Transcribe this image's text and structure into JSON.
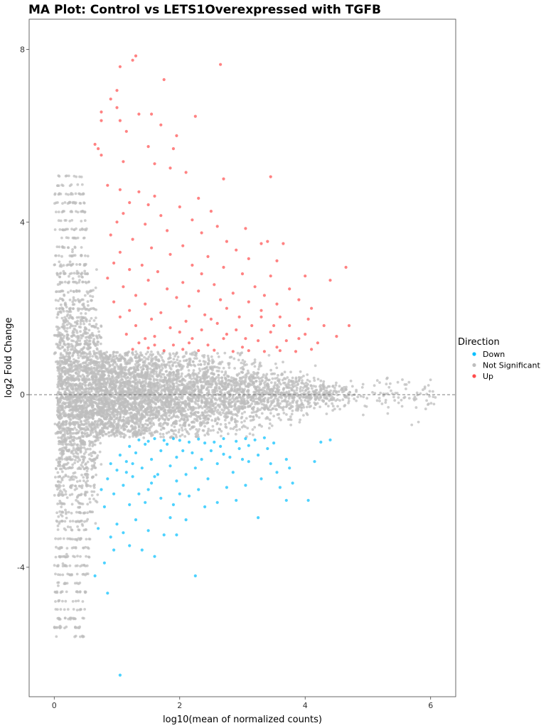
{
  "chart_data": {
    "type": "scatter",
    "title": "MA Plot: Control vs LETS1Overexpressed with TGFB",
    "xlabel": "log10(mean of normalized counts)",
    "ylabel": "log2 Fold Change",
    "xlim": [
      -0.4,
      6.4
    ],
    "ylim": [
      -7.0,
      8.7
    ],
    "x_ticks": [
      0,
      2,
      4,
      6
    ],
    "y_ticks": [
      -4,
      0,
      4,
      8
    ],
    "x_tick_labels": [
      "0",
      "2",
      "4",
      "6"
    ],
    "y_tick_labels": [
      "-4",
      "0",
      "4",
      "8"
    ],
    "reference_line": {
      "y": 0,
      "style": "dashed"
    },
    "legend": {
      "title": "Direction",
      "placement": "right"
    },
    "series": [
      {
        "name": "Down",
        "color": "#00bfff",
        "points": [
          [
            1.05,
            -6.5
          ],
          [
            0.65,
            -4.2
          ],
          [
            0.85,
            -4.6
          ],
          [
            0.8,
            -3.9
          ],
          [
            2.25,
            -4.2
          ],
          [
            0.95,
            -3.6
          ],
          [
            1.6,
            -3.75
          ],
          [
            1.4,
            -3.6
          ],
          [
            1.2,
            -3.5
          ],
          [
            0.9,
            -3.3
          ],
          [
            1.1,
            -3.2
          ],
          [
            1.75,
            -3.25
          ],
          [
            1.95,
            -3.25
          ],
          [
            1.5,
            -3.15
          ],
          [
            0.7,
            -3.1
          ],
          [
            1.0,
            -3.0
          ],
          [
            1.3,
            -2.9
          ],
          [
            1.85,
            -2.85
          ],
          [
            2.1,
            -2.9
          ],
          [
            3.25,
            -2.85
          ],
          [
            2.9,
            -2.45
          ],
          [
            3.7,
            -2.45
          ],
          [
            4.05,
            -2.45
          ],
          [
            0.8,
            -2.6
          ],
          [
            1.2,
            -2.55
          ],
          [
            1.45,
            -2.5
          ],
          [
            1.7,
            -2.4
          ],
          [
            1.9,
            -2.55
          ],
          [
            2.15,
            -2.35
          ],
          [
            2.4,
            -2.6
          ],
          [
            2.6,
            -2.5
          ],
          [
            0.95,
            -2.3
          ],
          [
            1.35,
            -2.3
          ],
          [
            3.6,
            -2.15
          ],
          [
            3.8,
            -2.05
          ],
          [
            2.3,
            -2.2
          ],
          [
            2.75,
            -2.15
          ],
          [
            3.05,
            -2.1
          ],
          [
            0.75,
            -2.2
          ],
          [
            1.1,
            -2.1
          ],
          [
            1.55,
            -2.05
          ],
          [
            1.95,
            -2.0
          ],
          [
            2.45,
            -1.95
          ],
          [
            3.3,
            -1.95
          ],
          [
            0.85,
            -1.95
          ],
          [
            1.25,
            -1.9
          ],
          [
            1.65,
            -1.85
          ],
          [
            2.1,
            -1.85
          ],
          [
            2.85,
            -1.8
          ],
          [
            3.55,
            -1.8
          ],
          [
            3.75,
            -1.7
          ],
          [
            1.0,
            -1.75
          ],
          [
            1.4,
            -1.7
          ],
          [
            1.85,
            -1.65
          ],
          [
            2.25,
            -1.7
          ],
          [
            2.6,
            -1.6
          ],
          [
            3.1,
            -1.55
          ],
          [
            4.15,
            -1.55
          ],
          [
            0.9,
            -1.6
          ],
          [
            1.15,
            -1.55
          ],
          [
            1.55,
            -1.5
          ],
          [
            1.95,
            -1.45
          ],
          [
            2.35,
            -1.5
          ],
          [
            2.8,
            -1.45
          ],
          [
            3.25,
            -1.4
          ],
          [
            3.7,
            -1.5
          ],
          [
            4.25,
            -1.1
          ],
          [
            4.4,
            -1.05
          ],
          [
            1.05,
            -1.4
          ],
          [
            1.3,
            -1.35
          ],
          [
            1.7,
            -1.3
          ],
          [
            2.05,
            -1.3
          ],
          [
            2.5,
            -1.3
          ],
          [
            2.95,
            -1.25
          ],
          [
            3.4,
            -1.25
          ],
          [
            1.2,
            -1.2
          ],
          [
            1.45,
            -1.15
          ],
          [
            1.8,
            -1.15
          ],
          [
            2.15,
            -1.1
          ],
          [
            2.55,
            -1.1
          ],
          [
            2.9,
            -1.08
          ],
          [
            3.2,
            -1.05
          ],
          [
            1.35,
            -1.05
          ],
          [
            1.6,
            -1.02
          ],
          [
            1.9,
            -1.02
          ],
          [
            2.3,
            -1.03
          ],
          [
            2.7,
            -1.02
          ],
          [
            3.05,
            -1.02
          ],
          [
            3.35,
            -1.0
          ],
          [
            1.5,
            -1.08
          ],
          [
            1.75,
            -1.06
          ],
          [
            2.0,
            -1.06
          ],
          [
            2.4,
            -1.12
          ],
          [
            2.65,
            -1.2
          ],
          [
            3.1,
            -1.18
          ],
          [
            3.5,
            -1.12
          ],
          [
            1.25,
            -1.6
          ],
          [
            1.6,
            -1.9
          ],
          [
            2.2,
            -1.35
          ],
          [
            2.7,
            -1.38
          ],
          [
            3.0,
            -1.5
          ],
          [
            3.45,
            -1.6
          ],
          [
            1.15,
            -1.8
          ],
          [
            1.5,
            -2.2
          ],
          [
            2.0,
            -2.3
          ]
        ]
      },
      {
        "name": "Not Significant",
        "color": "#bebebe",
        "points": []
      },
      {
        "name": "Up",
        "color": "#ff4d4d",
        "points": [
          [
            1.3,
            7.85
          ],
          [
            1.25,
            7.75
          ],
          [
            2.65,
            7.65
          ],
          [
            1.05,
            7.6
          ],
          [
            1.75,
            7.3
          ],
          [
            1.0,
            7.05
          ],
          [
            0.9,
            6.85
          ],
          [
            1.0,
            6.65
          ],
          [
            0.75,
            6.55
          ],
          [
            1.35,
            6.5
          ],
          [
            1.55,
            6.5
          ],
          [
            2.25,
            6.45
          ],
          [
            0.75,
            6.35
          ],
          [
            1.05,
            6.35
          ],
          [
            1.7,
            6.25
          ],
          [
            1.15,
            6.1
          ],
          [
            1.95,
            6.0
          ],
          [
            1.5,
            5.75
          ],
          [
            0.65,
            5.8
          ],
          [
            0.7,
            5.7
          ],
          [
            1.9,
            5.7
          ],
          [
            0.75,
            5.55
          ],
          [
            1.1,
            5.4
          ],
          [
            1.6,
            5.35
          ],
          [
            1.85,
            5.25
          ],
          [
            2.1,
            5.15
          ],
          [
            2.7,
            5.0
          ],
          [
            3.45,
            5.05
          ],
          [
            0.85,
            4.85
          ],
          [
            1.05,
            4.75
          ],
          [
            1.35,
            4.7
          ],
          [
            1.6,
            4.6
          ],
          [
            2.3,
            4.55
          ],
          [
            1.2,
            4.45
          ],
          [
            1.5,
            4.4
          ],
          [
            2.0,
            4.35
          ],
          [
            2.5,
            4.25
          ],
          [
            1.1,
            4.2
          ],
          [
            1.7,
            4.15
          ],
          [
            2.2,
            4.05
          ],
          [
            1.0,
            4.0
          ],
          [
            1.45,
            3.95
          ],
          [
            2.6,
            3.9
          ],
          [
            3.05,
            3.85
          ],
          [
            1.8,
            3.8
          ],
          [
            2.35,
            3.75
          ],
          [
            0.9,
            3.7
          ],
          [
            1.25,
            3.6
          ],
          [
            2.75,
            3.55
          ],
          [
            3.4,
            3.55
          ],
          [
            3.3,
            3.5
          ],
          [
            3.65,
            3.5
          ],
          [
            2.05,
            3.45
          ],
          [
            1.55,
            3.4
          ],
          [
            2.9,
            3.35
          ],
          [
            1.05,
            3.3
          ],
          [
            1.85,
            3.25
          ],
          [
            2.45,
            3.2
          ],
          [
            3.1,
            3.15
          ],
          [
            3.55,
            3.1
          ],
          [
            0.95,
            3.05
          ],
          [
            1.4,
            3.0
          ],
          [
            2.2,
            3.0
          ],
          [
            2.7,
            2.95
          ],
          [
            4.65,
            2.95
          ],
          [
            1.2,
            2.9
          ],
          [
            1.65,
            2.85
          ],
          [
            2.35,
            2.8
          ],
          [
            3.0,
            2.8
          ],
          [
            3.45,
            2.75
          ],
          [
            4.0,
            2.75
          ],
          [
            4.4,
            2.65
          ],
          [
            0.85,
            2.7
          ],
          [
            1.5,
            2.65
          ],
          [
            2.05,
            2.6
          ],
          [
            2.55,
            2.55
          ],
          [
            3.2,
            2.5
          ],
          [
            3.75,
            2.45
          ],
          [
            1.1,
            2.5
          ],
          [
            1.8,
            2.45
          ],
          [
            2.3,
            2.4
          ],
          [
            2.85,
            2.35
          ],
          [
            3.35,
            2.3
          ],
          [
            1.3,
            2.3
          ],
          [
            1.95,
            2.25
          ],
          [
            2.65,
            2.2
          ],
          [
            3.1,
            2.15
          ],
          [
            3.55,
            2.1
          ],
          [
            3.9,
            2.2
          ],
          [
            4.1,
            2.0
          ],
          [
            0.95,
            2.15
          ],
          [
            1.45,
            2.1
          ],
          [
            2.15,
            2.05
          ],
          [
            2.75,
            2.0
          ],
          [
            3.3,
            1.95
          ],
          [
            1.2,
            1.95
          ],
          [
            1.7,
            1.9
          ],
          [
            2.4,
            1.85
          ],
          [
            2.95,
            1.8
          ],
          [
            3.6,
            1.8
          ],
          [
            4.05,
            1.75
          ],
          [
            1.05,
            1.8
          ],
          [
            1.55,
            1.75
          ],
          [
            2.1,
            1.7
          ],
          [
            2.6,
            1.65
          ],
          [
            3.15,
            1.6
          ],
          [
            3.75,
            1.6
          ],
          [
            4.3,
            1.6
          ],
          [
            4.7,
            1.6
          ],
          [
            1.3,
            1.6
          ],
          [
            1.85,
            1.55
          ],
          [
            2.35,
            1.5
          ],
          [
            2.9,
            1.5
          ],
          [
            3.45,
            1.45
          ],
          [
            4.0,
            1.4
          ],
          [
            4.5,
            1.35
          ],
          [
            1.15,
            1.4
          ],
          [
            1.6,
            1.35
          ],
          [
            2.2,
            1.3
          ],
          [
            2.7,
            1.3
          ],
          [
            3.25,
            1.25
          ],
          [
            3.7,
            1.25
          ],
          [
            4.2,
            1.2
          ],
          [
            1.35,
            1.2
          ],
          [
            1.9,
            1.15
          ],
          [
            2.45,
            1.15
          ],
          [
            3.0,
            1.1
          ],
          [
            3.55,
            1.1
          ],
          [
            4.1,
            1.05
          ],
          [
            1.5,
            1.08
          ],
          [
            2.05,
            1.05
          ],
          [
            2.55,
            1.03
          ],
          [
            3.1,
            1.02
          ],
          [
            3.6,
            1.02
          ],
          [
            1.25,
            1.05
          ],
          [
            1.75,
            1.02
          ],
          [
            2.3,
            1.02
          ],
          [
            2.85,
            1.0
          ],
          [
            3.35,
            1.0
          ],
          [
            3.85,
            1.0
          ],
          [
            1.45,
            1.3
          ],
          [
            2.0,
            1.45
          ],
          [
            2.5,
            1.75
          ],
          [
            3.05,
            1.3
          ],
          [
            3.5,
            1.6
          ],
          [
            1.6,
            1.15
          ],
          [
            2.15,
            1.2
          ],
          [
            2.75,
            1.4
          ],
          [
            3.3,
            1.8
          ],
          [
            3.9,
            1.3
          ]
        ]
      }
    ]
  }
}
